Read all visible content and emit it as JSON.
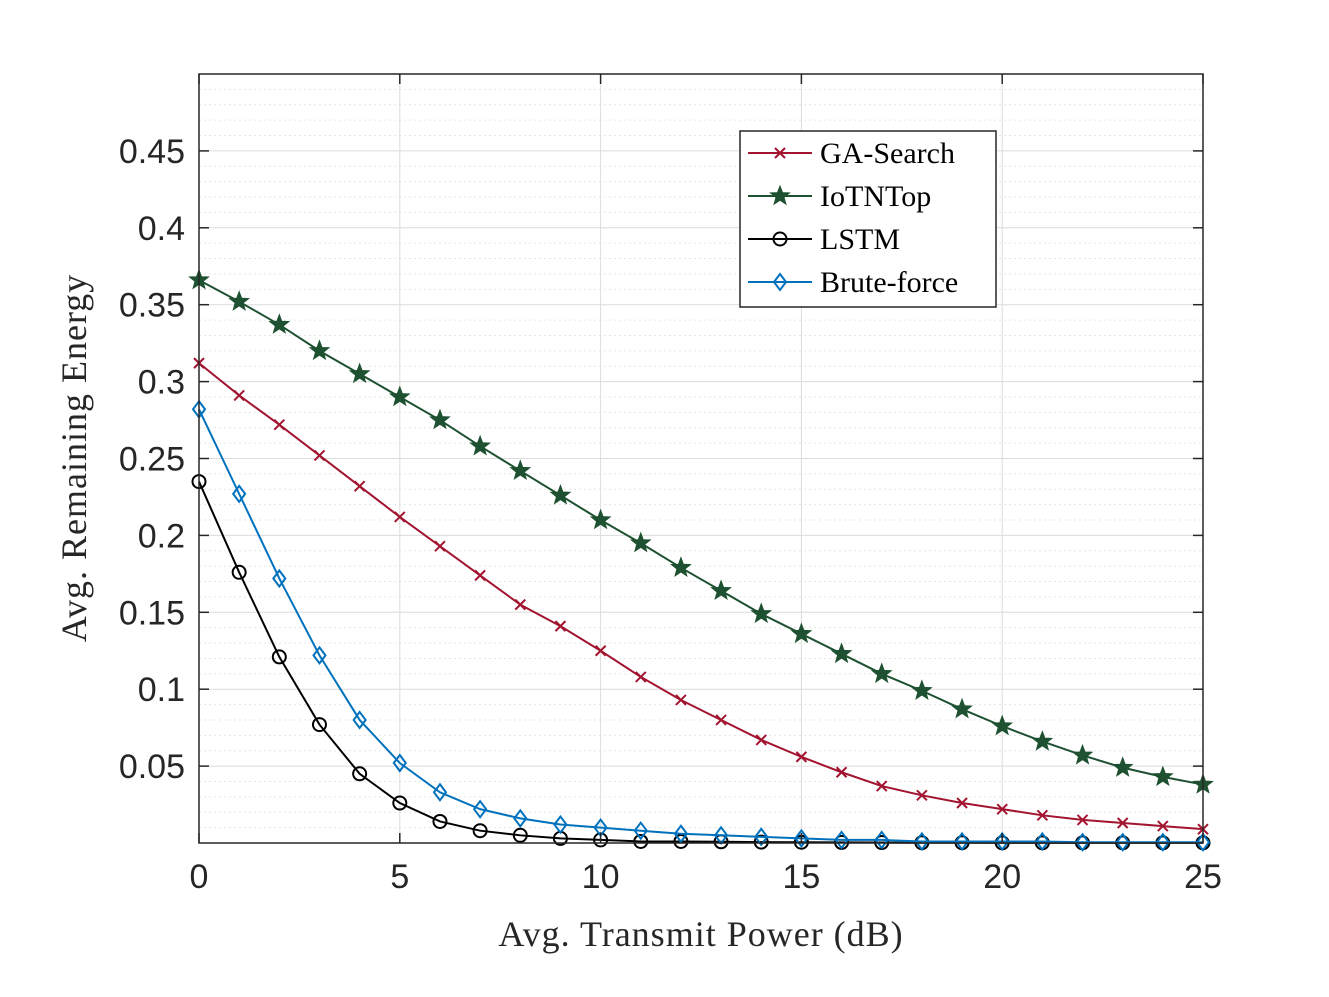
{
  "chart_data": {
    "type": "line",
    "title": "",
    "xlabel": "Avg. Transmit Power (dB)",
    "ylabel": "Avg. Remaining Energy",
    "xlim": [
      0,
      25
    ],
    "ylim": [
      0,
      0.5
    ],
    "xticks": [
      0,
      5,
      10,
      15,
      20,
      25
    ],
    "xtick_labels": [
      "0",
      "5",
      "10",
      "15",
      "20",
      "25"
    ],
    "yticks": [
      0.05,
      0.1,
      0.15,
      0.2,
      0.25,
      0.3,
      0.35,
      0.4,
      0.45
    ],
    "ytick_labels": [
      "0.05",
      "0.1",
      "0.15",
      "0.2",
      "0.25",
      "0.3",
      "0.35",
      "0.4",
      "0.45"
    ],
    "grid": true,
    "minor_grid": true,
    "legend_position": "top-right",
    "x": [
      0,
      1,
      2,
      3,
      4,
      5,
      6,
      7,
      8,
      9,
      10,
      11,
      12,
      13,
      14,
      15,
      16,
      17,
      18,
      19,
      20,
      21,
      22,
      23,
      24,
      25
    ],
    "series": [
      {
        "name": "GA-Search",
        "color": "#A2142F",
        "marker": "x",
        "values": [
          0.312,
          0.291,
          0.272,
          0.252,
          0.232,
          0.212,
          0.193,
          0.174,
          0.155,
          0.141,
          0.125,
          0.108,
          0.093,
          0.08,
          0.067,
          0.056,
          0.046,
          0.037,
          0.031,
          0.026,
          0.022,
          0.018,
          0.015,
          0.013,
          0.011,
          0.009
        ]
      },
      {
        "name": "IoTNTop",
        "color": "#1E5131",
        "marker": "star",
        "values": [
          0.366,
          0.352,
          0.337,
          0.32,
          0.305,
          0.29,
          0.275,
          0.258,
          0.242,
          0.226,
          0.21,
          0.195,
          0.179,
          0.164,
          0.149,
          0.136,
          0.123,
          0.11,
          0.099,
          0.087,
          0.076,
          0.066,
          0.057,
          0.049,
          0.043,
          0.038
        ]
      },
      {
        "name": "LSTM",
        "color": "#000000",
        "marker": "circle",
        "values": [
          0.235,
          0.176,
          0.121,
          0.077,
          0.045,
          0.026,
          0.014,
          0.008,
          0.005,
          0.003,
          0.002,
          0.001,
          0.001,
          0.0008,
          0.0006,
          0.0005,
          0.0004,
          0.0003,
          0.0002,
          0.0002,
          0.0001,
          0.0001,
          0.0001,
          0.0001,
          0.0001,
          0.0001
        ]
      },
      {
        "name": "Brute-force",
        "color": "#0072BD",
        "marker": "diamond",
        "values": [
          0.282,
          0.227,
          0.172,
          0.122,
          0.08,
          0.052,
          0.033,
          0.022,
          0.016,
          0.012,
          0.01,
          0.008,
          0.006,
          0.005,
          0.004,
          0.003,
          0.002,
          0.002,
          0.001,
          0.001,
          0.001,
          0.001,
          0.0005,
          0.0005,
          0.0005,
          0.0005
        ]
      }
    ]
  },
  "colors": {
    "axis": "#262626",
    "major_grid": "#dcdcdc",
    "minor_grid": "#e6e6e6",
    "background": "#ffffff"
  }
}
